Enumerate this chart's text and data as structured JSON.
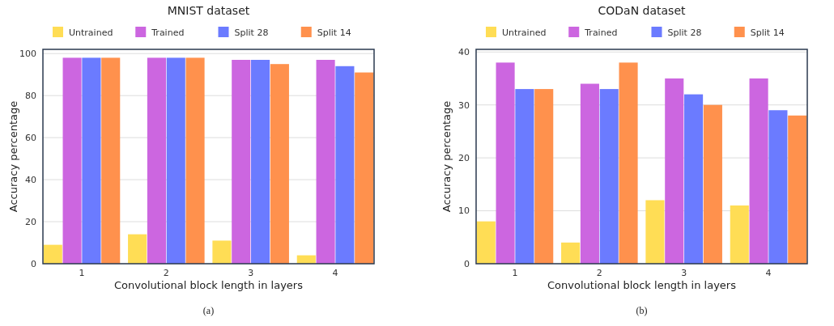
{
  "chart_data": [
    {
      "type": "bar",
      "title": "MNIST dataset",
      "xlabel": "Convolutional block length in layers",
      "ylabel": "Accuracy percentage",
      "categories": [
        "1",
        "2",
        "3",
        "4"
      ],
      "series": [
        {
          "name": "Untrained",
          "color": "#ffdd55",
          "values": [
            9,
            14,
            11,
            4
          ]
        },
        {
          "name": "Trained",
          "color": "#cc66e0",
          "values": [
            98,
            98,
            97,
            97
          ]
        },
        {
          "name": "Split 28",
          "color": "#6b7bff",
          "values": [
            98,
            98,
            97,
            94
          ]
        },
        {
          "name": "Split 14",
          "color": "#ff914d",
          "values": [
            98,
            98,
            95,
            91
          ]
        }
      ],
      "ylim": [
        0,
        102
      ],
      "yticks": [
        0,
        20,
        40,
        60,
        80,
        100
      ],
      "grid": "y",
      "legend": "top",
      "annotations": [
        "(a)"
      ]
    },
    {
      "type": "bar",
      "title": "CODaN dataset",
      "xlabel": "Convolutional block length in layers",
      "ylabel": "Accuracy percentage",
      "categories": [
        "1",
        "2",
        "3",
        "4"
      ],
      "series": [
        {
          "name": "Untrained",
          "color": "#ffdd55",
          "values": [
            8,
            4,
            12,
            11
          ]
        },
        {
          "name": "Trained",
          "color": "#cc66e0",
          "values": [
            38,
            34,
            35,
            35
          ]
        },
        {
          "name": "Split 28",
          "color": "#6b7bff",
          "values": [
            33,
            33,
            32,
            29
          ]
        },
        {
          "name": "Split 14",
          "color": "#ff914d",
          "values": [
            33,
            38,
            30,
            28
          ]
        }
      ],
      "ylim": [
        0,
        40.5
      ],
      "yticks": [
        0,
        10,
        20,
        30,
        40
      ],
      "grid": "y",
      "legend": "top",
      "annotations": [
        "(b)"
      ]
    }
  ]
}
